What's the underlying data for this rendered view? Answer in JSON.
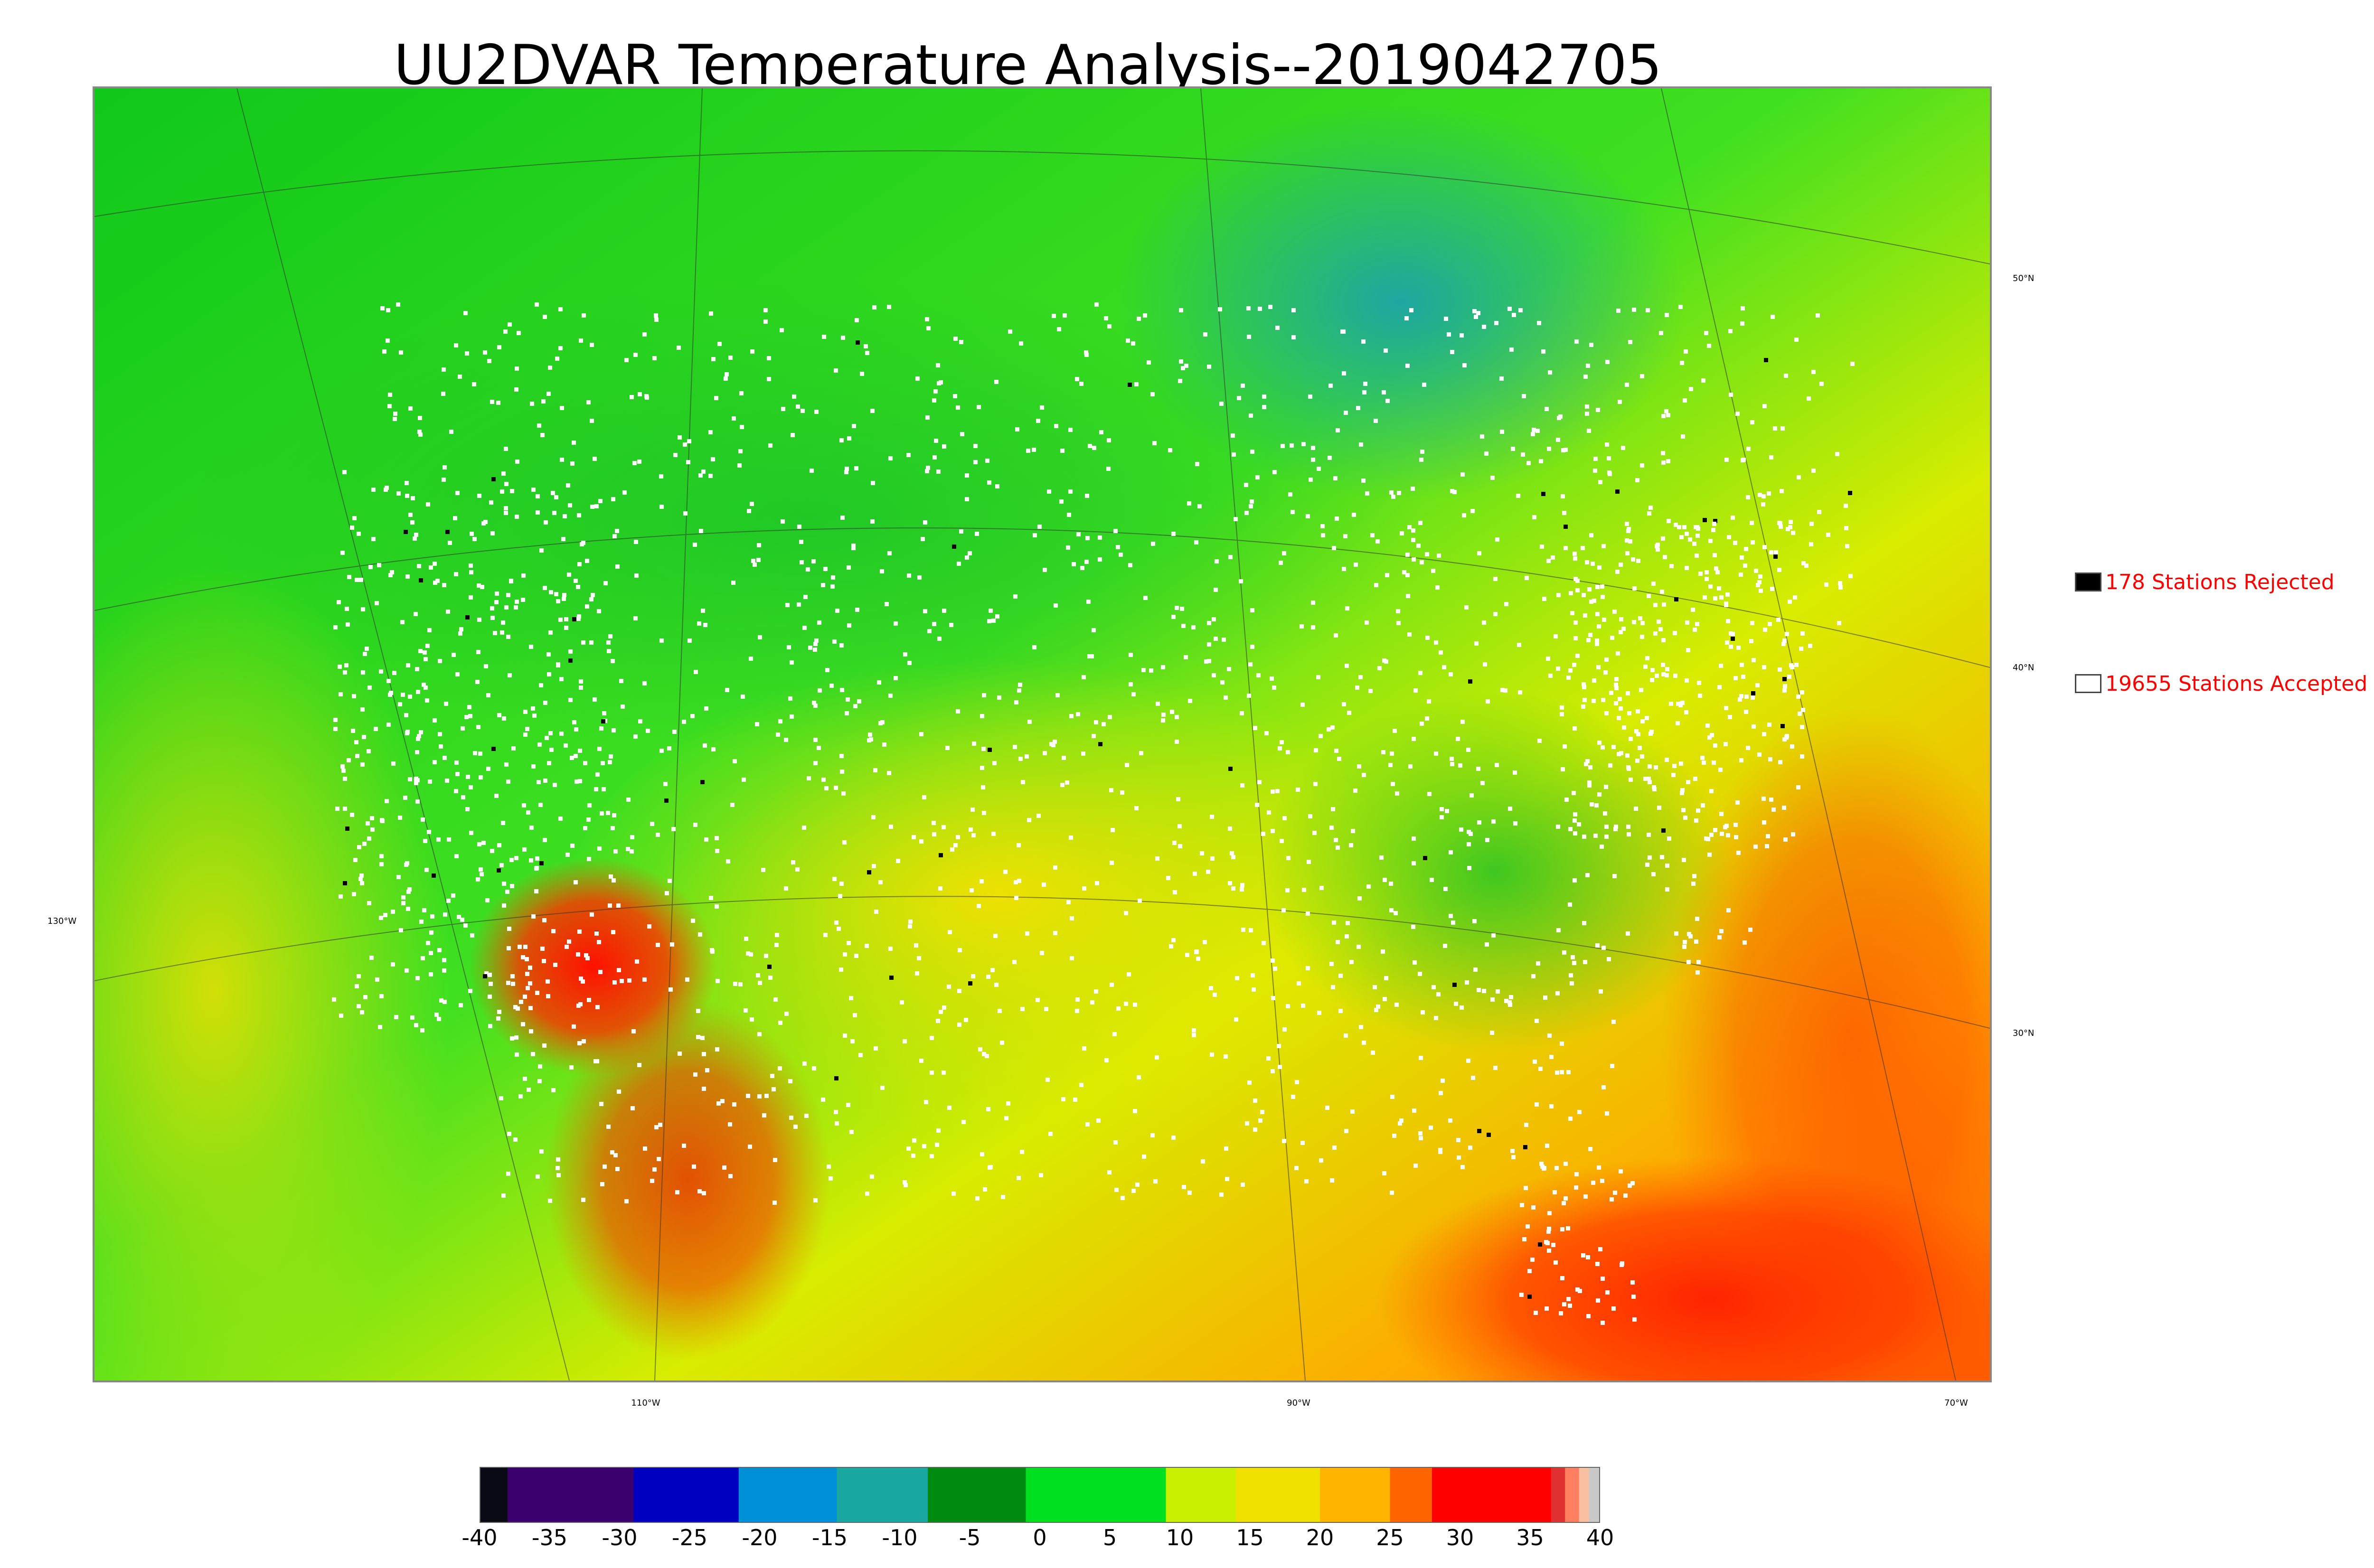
{
  "title": "UU2DVAR Temperature Analysis--2019042705",
  "map": {
    "longitude_labels": [
      "130°W",
      "110°W",
      "90°W",
      "70°W"
    ],
    "latitude_labels": [
      "50°N",
      "40°N",
      "30°N"
    ]
  },
  "legend": [
    {
      "label": "178 Stations Rejected",
      "swatch_color": "#000000"
    },
    {
      "label": "19655 Stations Accepted",
      "swatch_color": "#ffffff"
    }
  ],
  "colorbar": {
    "tick_labels": [
      "-40",
      "-35",
      "-30",
      "-25",
      "-20",
      "-15",
      "-10",
      "-5",
      "0",
      "5",
      "10",
      "15",
      "20",
      "25",
      "30",
      "35",
      "40"
    ],
    "range": [
      -40,
      40
    ],
    "colors": [
      {
        "from": -40,
        "to": -38,
        "color": "#0a0a14"
      },
      {
        "from": -38,
        "to": -29,
        "color": "#3a006e"
      },
      {
        "from": -29,
        "to": -21.5,
        "color": "#0000c0"
      },
      {
        "from": -21.5,
        "to": -14.5,
        "color": "#0090d8"
      },
      {
        "from": -14.5,
        "to": -8,
        "color": "#18a8a0"
      },
      {
        "from": -8,
        "to": -1,
        "color": "#008a10"
      },
      {
        "from": -1,
        "to": 9,
        "color": "#00e020"
      },
      {
        "from": 9,
        "to": 14,
        "color": "#c8f000"
      },
      {
        "from": 14,
        "to": 20,
        "color": "#f0e000"
      },
      {
        "from": 20,
        "to": 25,
        "color": "#ffb400"
      },
      {
        "from": 25,
        "to": 28,
        "color": "#ff6400"
      },
      {
        "from": 28,
        "to": 36.5,
        "color": "#ff0000"
      },
      {
        "from": 36.5,
        "to": 37.5,
        "color": "#e03030"
      },
      {
        "from": 37.5,
        "to": 38.5,
        "color": "#ff8060"
      },
      {
        "from": 38.5,
        "to": 39.2,
        "color": "#f8c0a0"
      },
      {
        "from": 39.2,
        "to": 40,
        "color": "#c8c8c8"
      }
    ]
  }
}
